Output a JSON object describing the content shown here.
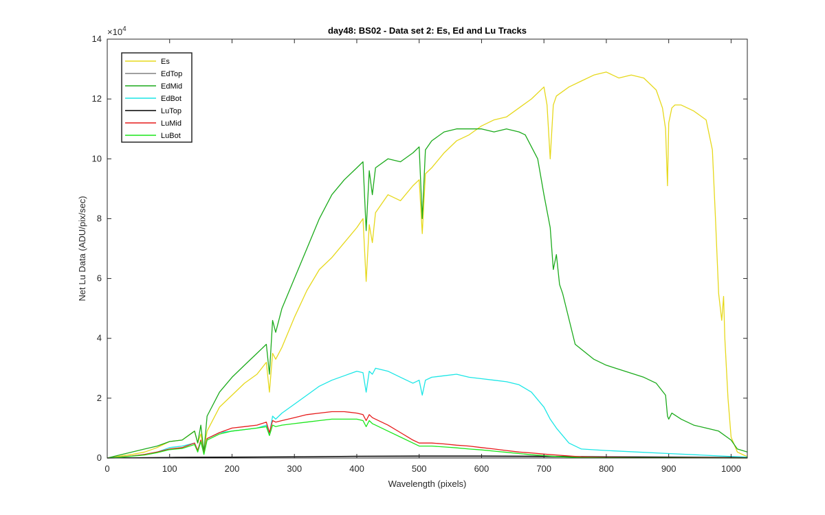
{
  "chart_data": {
    "type": "line",
    "title": "day48: BS02 - Data set 2: Es, Ed and Lu Tracks",
    "xlabel": "Wavelength (pixels)",
    "ylabel": "Net Lu Data (ADU/pix/sec)",
    "y_multiplier_label": "×10",
    "y_multiplier_exponent": "4",
    "xlim": [
      0,
      1026
    ],
    "ylim": [
      0,
      140000
    ],
    "xticks": [
      0,
      100,
      200,
      300,
      400,
      500,
      600,
      700,
      800,
      900,
      1000
    ],
    "yticks": [
      0,
      20000,
      40000,
      60000,
      80000,
      100000,
      120000,
      140000
    ],
    "ytick_labels": [
      "0",
      "2",
      "4",
      "6",
      "8",
      "10",
      "12",
      "14"
    ],
    "grid": false,
    "legend_position": "top-left",
    "series": [
      {
        "name": "Es",
        "color": "#e6d81a",
        "x": [
          0,
          20,
          40,
          60,
          80,
          100,
          120,
          140,
          145,
          150,
          155,
          160,
          180,
          200,
          220,
          240,
          255,
          260,
          265,
          270,
          280,
          300,
          320,
          340,
          360,
          380,
          400,
          410,
          415,
          420,
          425,
          430,
          450,
          470,
          490,
          500,
          505,
          510,
          520,
          540,
          560,
          580,
          600,
          620,
          640,
          660,
          680,
          700,
          705,
          710,
          715,
          720,
          740,
          760,
          780,
          800,
          820,
          840,
          860,
          880,
          890,
          895,
          898,
          900,
          905,
          910,
          920,
          940,
          960,
          970,
          975,
          980,
          985,
          988,
          990,
          995,
          1000,
          1010,
          1020,
          1026
        ],
        "y": [
          0,
          600,
          1200,
          2000,
          3500,
          5500,
          6000,
          9000,
          5000,
          8000,
          2500,
          9000,
          17000,
          21000,
          25000,
          28000,
          32000,
          22000,
          35000,
          33000,
          37000,
          47000,
          56000,
          63000,
          67000,
          72000,
          77000,
          80000,
          59000,
          78000,
          72000,
          82000,
          88000,
          86000,
          91000,
          93000,
          75000,
          95000,
          97000,
          102000,
          106000,
          108000,
          111000,
          113000,
          114000,
          117000,
          120000,
          124000,
          118000,
          100000,
          118000,
          121000,
          124000,
          126000,
          128000,
          129000,
          127000,
          128000,
          127000,
          123000,
          117000,
          110000,
          91000,
          112000,
          117000,
          118000,
          118000,
          116000,
          113000,
          103000,
          80000,
          55000,
          46000,
          54000,
          40000,
          20000,
          7000,
          2000,
          1000,
          500
        ]
      },
      {
        "name": "EdTop",
        "color": "#808080",
        "x": [
          0,
          100,
          200,
          300,
          400,
          500,
          600,
          700,
          800,
          900,
          1000,
          1026
        ],
        "y": [
          0,
          200,
          300,
          400,
          500,
          500,
          500,
          400,
          300,
          200,
          100,
          50
        ]
      },
      {
        "name": "EdMid",
        "color": "#1aaa1a",
        "x": [
          0,
          20,
          40,
          60,
          80,
          100,
          120,
          140,
          145,
          150,
          155,
          160,
          180,
          200,
          220,
          240,
          255,
          260,
          265,
          270,
          280,
          300,
          320,
          340,
          360,
          380,
          400,
          410,
          415,
          420,
          425,
          430,
          450,
          470,
          490,
          500,
          505,
          510,
          520,
          540,
          560,
          580,
          600,
          620,
          640,
          660,
          670,
          690,
          700,
          710,
          715,
          720,
          725,
          730,
          750,
          780,
          800,
          830,
          860,
          880,
          895,
          898,
          900,
          905,
          920,
          940,
          960,
          980,
          1000,
          1010,
          1026
        ],
        "y": [
          0,
          1000,
          2000,
          3000,
          4000,
          5500,
          6000,
          9000,
          5000,
          11000,
          2000,
          14000,
          22000,
          27000,
          31000,
          35000,
          38000,
          28000,
          46000,
          42000,
          50000,
          60000,
          70000,
          80000,
          88000,
          93000,
          97000,
          99000,
          76000,
          96000,
          88000,
          97000,
          100000,
          99000,
          102000,
          104000,
          80000,
          103000,
          106000,
          109000,
          110000,
          110000,
          110000,
          109000,
          110000,
          109000,
          108000,
          100000,
          88000,
          77000,
          63000,
          68000,
          58000,
          55000,
          38000,
          33000,
          31000,
          29000,
          27000,
          25000,
          21000,
          14000,
          13000,
          15000,
          13000,
          11000,
          10000,
          9000,
          6000,
          3000,
          2000
        ]
      },
      {
        "name": "EdBot",
        "color": "#1ae6e6",
        "x": [
          0,
          20,
          40,
          60,
          80,
          100,
          120,
          140,
          145,
          150,
          155,
          160,
          180,
          200,
          220,
          240,
          255,
          260,
          265,
          270,
          280,
          300,
          320,
          340,
          360,
          380,
          400,
          410,
          415,
          420,
          425,
          430,
          450,
          470,
          490,
          500,
          505,
          510,
          520,
          540,
          560,
          580,
          600,
          620,
          640,
          660,
          680,
          700,
          710,
          720,
          740,
          760,
          800,
          850,
          900,
          950,
          1000,
          1026
        ],
        "y": [
          0,
          300,
          700,
          1200,
          2000,
          3500,
          4000,
          5000,
          2500,
          6000,
          1500,
          6500,
          8500,
          9000,
          9500,
          10000,
          11000,
          8000,
          14000,
          13000,
          15000,
          18000,
          21000,
          24000,
          26000,
          27500,
          29000,
          28500,
          22000,
          29000,
          28000,
          30000,
          29000,
          27000,
          25000,
          26000,
          21000,
          26000,
          27000,
          27500,
          28000,
          27000,
          26500,
          26000,
          25500,
          24500,
          22000,
          17000,
          13000,
          10000,
          5000,
          3000,
          2500,
          2000,
          1500,
          1000,
          500,
          300
        ]
      },
      {
        "name": "LuTop",
        "color": "#000000",
        "x": [
          0,
          100,
          200,
          300,
          400,
          500,
          600,
          700,
          800,
          900,
          1000,
          1026
        ],
        "y": [
          0,
          200,
          300,
          400,
          600,
          700,
          700,
          600,
          400,
          300,
          200,
          100
        ]
      },
      {
        "name": "LuMid",
        "color": "#e61a1a",
        "x": [
          0,
          20,
          40,
          60,
          80,
          100,
          120,
          140,
          145,
          150,
          155,
          160,
          180,
          200,
          220,
          240,
          255,
          260,
          265,
          270,
          280,
          300,
          320,
          340,
          360,
          380,
          400,
          410,
          415,
          420,
          425,
          430,
          450,
          470,
          490,
          500,
          520,
          540,
          560,
          580,
          600,
          620,
          640,
          660,
          680,
          700,
          720,
          740,
          760,
          800,
          850,
          900,
          1000,
          1026
        ],
        "y": [
          0,
          300,
          700,
          1200,
          2000,
          3000,
          3500,
          5000,
          2500,
          6000,
          1500,
          6500,
          8500,
          10000,
          10500,
          11000,
          12000,
          8500,
          12500,
          12000,
          12500,
          13500,
          14500,
          15000,
          15500,
          15500,
          15000,
          14500,
          12500,
          14500,
          13500,
          13000,
          11000,
          8500,
          6000,
          5000,
          5000,
          4700,
          4300,
          4000,
          3500,
          3000,
          2500,
          2000,
          1700,
          1300,
          1000,
          700,
          400,
          200,
          100,
          100,
          50,
          0
        ]
      },
      {
        "name": "LuBot",
        "color": "#1ae61a",
        "x": [
          0,
          20,
          40,
          60,
          80,
          100,
          120,
          140,
          145,
          150,
          155,
          160,
          180,
          200,
          220,
          240,
          255,
          260,
          265,
          270,
          280,
          300,
          320,
          340,
          360,
          380,
          400,
          410,
          415,
          420,
          425,
          430,
          450,
          470,
          490,
          500,
          520,
          540,
          560,
          580,
          600,
          620,
          640,
          660,
          680,
          700,
          720,
          740,
          760,
          800,
          850,
          900,
          1000,
          1026
        ],
        "y": [
          0,
          250,
          600,
          1000,
          1800,
          2800,
          3200,
          4500,
          2000,
          5500,
          1200,
          6000,
          8000,
          9000,
          9500,
          10000,
          10500,
          7500,
          11000,
          10500,
          11000,
          11500,
          12000,
          12500,
          13000,
          13000,
          13000,
          12500,
          10500,
          12500,
          11500,
          11000,
          9000,
          7000,
          5000,
          4000,
          4000,
          3700,
          3400,
          3000,
          2700,
          2300,
          1900,
          1500,
          1100,
          800,
          500,
          300,
          150,
          100,
          50,
          50,
          0,
          0
        ]
      }
    ]
  }
}
